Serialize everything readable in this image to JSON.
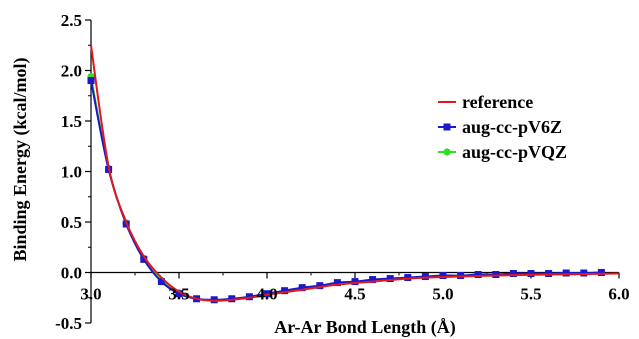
{
  "chart_data": {
    "type": "line",
    "title": "",
    "xlabel": "Ar-Ar Bond Length (Å)",
    "ylabel": "Binding Energy (kcal/mol)",
    "xlim": [
      3.0,
      6.0
    ],
    "ylim": [
      -0.5,
      2.5
    ],
    "xticks": [
      "3.0",
      "3.5",
      "4.0",
      "4.5",
      "5.0",
      "5.5",
      "6.0"
    ],
    "xtick_values": [
      3.0,
      3.5,
      4.0,
      4.5,
      5.0,
      5.5,
      6.0
    ],
    "yticks": [
      "-0.5",
      "0.0",
      "0.5",
      "1.0",
      "1.5",
      "2.0",
      "2.5"
    ],
    "ytick_values": [
      -0.5,
      0.0,
      0.5,
      1.0,
      1.5,
      2.0,
      2.5
    ],
    "grid": false,
    "legend_position": "right",
    "series": [
      {
        "name": "reference",
        "color": "#e0191c",
        "style": "line",
        "x": [
          3.0,
          3.1,
          3.2,
          3.3,
          3.4,
          3.5,
          3.6,
          3.7,
          3.8,
          3.9,
          4.0,
          4.2,
          4.4,
          4.6,
          4.8,
          5.0,
          5.3,
          5.6,
          6.0
        ],
        "y": [
          2.25,
          1.05,
          0.5,
          0.16,
          -0.05,
          -0.19,
          -0.26,
          -0.28,
          -0.27,
          -0.25,
          -0.22,
          -0.17,
          -0.12,
          -0.09,
          -0.06,
          -0.045,
          -0.03,
          -0.02,
          -0.01
        ]
      },
      {
        "name": "aug-cc-pV6Z",
        "color": "#1a1acc",
        "style": "line+square",
        "x": [
          3.0,
          3.1,
          3.2,
          3.3,
          3.4,
          3.5,
          3.6,
          3.7,
          3.8,
          3.9,
          4.0,
          4.1,
          4.2,
          4.3,
          4.4,
          4.5,
          4.6,
          4.7,
          4.8,
          4.9,
          5.0,
          5.1,
          5.2,
          5.3,
          5.4,
          5.5,
          5.6,
          5.7,
          5.8,
          5.9
        ],
        "y": [
          1.9,
          1.02,
          0.48,
          0.13,
          -0.09,
          -0.21,
          -0.26,
          -0.27,
          -0.26,
          -0.24,
          -0.21,
          -0.18,
          -0.15,
          -0.13,
          -0.1,
          -0.09,
          -0.07,
          -0.06,
          -0.05,
          -0.04,
          -0.03,
          -0.03,
          -0.02,
          -0.02,
          -0.01,
          -0.01,
          -0.01,
          -0.005,
          -0.005,
          0.0
        ]
      },
      {
        "name": "aug-cc-pVQZ",
        "color": "#33dd22",
        "style": "line+circle",
        "x": [
          3.0,
          3.1,
          3.2,
          3.3,
          3.4,
          3.5
        ],
        "y": [
          1.94,
          1.03,
          0.49,
          0.14,
          -0.08,
          -0.2
        ]
      }
    ]
  }
}
